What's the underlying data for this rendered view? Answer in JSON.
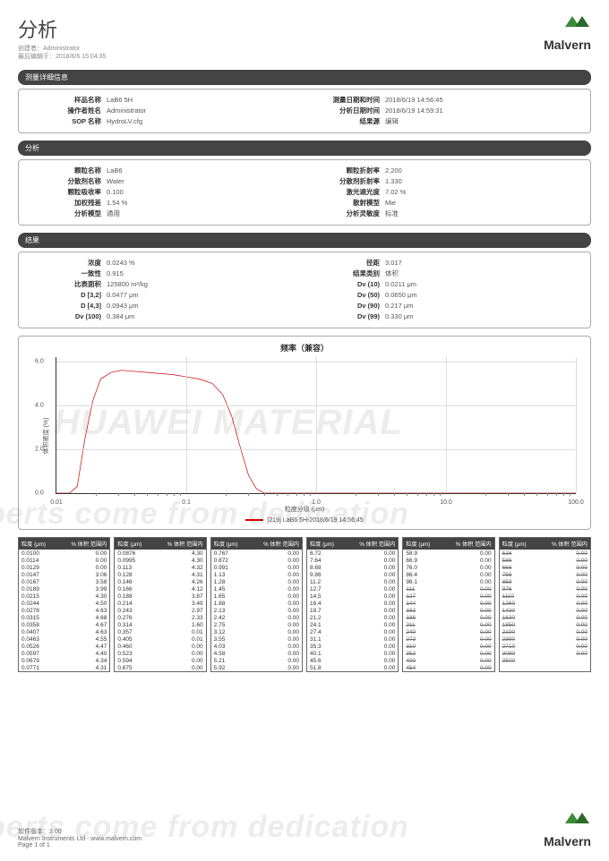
{
  "header": {
    "title": "分析",
    "creator_label": "创建者：",
    "creator": "Administrator",
    "edited_label": "最后编辑于：",
    "edited": "2018/6/6 15:04:35",
    "logo_text": "Malvern",
    "logo_color": "#3a8a3a"
  },
  "sections": {
    "measurement": {
      "title": "测量详细信息",
      "left": [
        {
          "label": "样品名称",
          "value": "LaB6   5H"
        },
        {
          "label": "操作者姓名",
          "value": "Administrator"
        },
        {
          "label": "SOP 名称",
          "value": "HydroLV.cfg"
        }
      ],
      "right": [
        {
          "label": "测量日期和时间",
          "value": "2018/6/19 14:56:45"
        },
        {
          "label": "分析日期时间",
          "value": "2018/6/19 14:59:31"
        },
        {
          "label": "结果源",
          "value": "编辑"
        }
      ]
    },
    "analysis": {
      "title": "分析",
      "left": [
        {
          "label": "颗粒名称",
          "value": "LaB6"
        },
        {
          "label": "分散剂名称",
          "value": "Water"
        },
        {
          "label": "颗粒吸收率",
          "value": "0.100"
        },
        {
          "label": "加权残差",
          "value": "1.54 %"
        },
        {
          "label": "分析模型",
          "value": "通用"
        }
      ],
      "right": [
        {
          "label": "颗粒折射率",
          "value": "2.200"
        },
        {
          "label": "分散剂折射率",
          "value": "1.330"
        },
        {
          "label": "激光遮光度",
          "value": "7.02 %"
        },
        {
          "label": "散射模型",
          "value": "Mie"
        },
        {
          "label": "分析灵敏度",
          "value": "标准"
        }
      ]
    },
    "results": {
      "title": "结果",
      "left": [
        {
          "label": "浓度",
          "value": "0.0243 %"
        },
        {
          "label": "一致性",
          "value": "0.915"
        },
        {
          "label": "比表面积",
          "value": "125800 m²/kg"
        },
        {
          "label": "D [3,2]",
          "value": "0.0477 μm"
        },
        {
          "label": "D [4,3]",
          "value": "0.0943 μm"
        },
        {
          "label": "Dv (100)",
          "value": "0.384 μm"
        }
      ],
      "right": [
        {
          "label": "径距",
          "value": "3.017"
        },
        {
          "label": "结果类别",
          "value": "体积"
        },
        {
          "label": "Dv (10)",
          "value": "0.0211 μm"
        },
        {
          "label": "Dv (50)",
          "value": "0.0650 μm"
        },
        {
          "label": "Dv (90)",
          "value": "0.217 μm"
        },
        {
          "label": "Dv (99)",
          "value": "0.330 μm"
        }
      ]
    }
  },
  "chart": {
    "title": "频率（兼容）",
    "y_label": "体积密度 (%)",
    "x_label": "粒度分级 (μm)",
    "legend": "[219] LaB6   5H-2018/6/19 14:56:45",
    "line_color": "#cc0000",
    "y_ticks": [
      "0.0",
      "2.0",
      "4.0",
      "6.0"
    ],
    "ylim": [
      0,
      6.2
    ],
    "x_ticks": [
      "0.01",
      "0.1",
      "1.0",
      "10.0",
      "100.0"
    ],
    "xlim_log": [
      -2,
      2
    ],
    "grid_color": "#dddddd",
    "curve": [
      [
        -2.0,
        0.0
      ],
      [
        -1.9,
        0.0
      ],
      [
        -1.84,
        0.3
      ],
      [
        -1.78,
        2.5
      ],
      [
        -1.72,
        4.2
      ],
      [
        -1.66,
        5.2
      ],
      [
        -1.58,
        5.5
      ],
      [
        -1.5,
        5.6
      ],
      [
        -1.4,
        5.55
      ],
      [
        -1.3,
        5.5
      ],
      [
        -1.2,
        5.45
      ],
      [
        -1.1,
        5.4
      ],
      [
        -1.0,
        5.3
      ],
      [
        -0.9,
        5.2
      ],
      [
        -0.8,
        5.0
      ],
      [
        -0.72,
        4.5
      ],
      [
        -0.65,
        3.5
      ],
      [
        -0.58,
        2.0
      ],
      [
        -0.52,
        0.8
      ],
      [
        -0.46,
        0.2
      ],
      [
        -0.4,
        0.0
      ],
      [
        0.0,
        0.0
      ],
      [
        1.0,
        0.0
      ],
      [
        2.0,
        0.0
      ]
    ]
  },
  "tables": {
    "header": [
      "粒度 (μm)",
      "% 体积 范围内"
    ],
    "columns": [
      [
        [
          "0.0100",
          "0.00"
        ],
        [
          "0.0114",
          "0.00"
        ],
        [
          "0.0129",
          "0.00"
        ],
        [
          "0.0147",
          "3.06"
        ],
        [
          "0.0167",
          "3.58"
        ],
        [
          "0.0189",
          "3.99"
        ],
        [
          "0.0215",
          "4.30"
        ],
        [
          "0.0244",
          "4.50"
        ],
        [
          "0.0278",
          "4.63"
        ],
        [
          "0.0315",
          "4.68"
        ],
        [
          "0.0358",
          "4.67"
        ],
        [
          "0.0407",
          "4.63"
        ],
        [
          "0.0463",
          "4.55"
        ],
        [
          "0.0526",
          "4.47"
        ],
        [
          "0.0597",
          "4.40"
        ],
        [
          "0.0679",
          "4.34"
        ],
        [
          "0.0771",
          "4.31"
        ]
      ],
      [
        [
          "0.0876",
          "4.30"
        ],
        [
          "0.0995",
          "4.30"
        ],
        [
          "0.113",
          "4.32"
        ],
        [
          "0.128",
          "4.31"
        ],
        [
          "0.146",
          "4.26"
        ],
        [
          "0.166",
          "4.12"
        ],
        [
          "0.188",
          "3.87"
        ],
        [
          "0.214",
          "3.49"
        ],
        [
          "0.243",
          "2.97"
        ],
        [
          "0.276",
          "2.33"
        ],
        [
          "0.314",
          "1.60"
        ],
        [
          "0.357",
          "0.01"
        ],
        [
          "0.405",
          "0.01"
        ],
        [
          "0.460",
          "0.00"
        ],
        [
          "0.523",
          "0.00"
        ],
        [
          "0.594",
          "0.00"
        ],
        [
          "0.675",
          "0.00"
        ]
      ],
      [
        [
          "0.767",
          "0.00"
        ],
        [
          "0.872",
          "0.00"
        ],
        [
          "0.991",
          "0.00"
        ],
        [
          "1.13",
          "0.00"
        ],
        [
          "1.28",
          "0.00"
        ],
        [
          "1.45",
          "0.00"
        ],
        [
          "1.65",
          "0.00"
        ],
        [
          "1.88",
          "0.00"
        ],
        [
          "2.13",
          "0.00"
        ],
        [
          "2.42",
          "0.00"
        ],
        [
          "2.75",
          "0.00"
        ],
        [
          "3.12",
          "0.00"
        ],
        [
          "3.55",
          "0.00"
        ],
        [
          "4.03",
          "0.00"
        ],
        [
          "4.58",
          "0.00"
        ],
        [
          "5.21",
          "0.00"
        ],
        [
          "5.92",
          "0.00"
        ]
      ],
      [
        [
          "6.72",
          "0.00"
        ],
        [
          "7.64",
          "0.00"
        ],
        [
          "8.68",
          "0.00"
        ],
        [
          "9.86",
          "0.00"
        ],
        [
          "11.2",
          "0.00"
        ],
        [
          "12.7",
          "0.00"
        ],
        [
          "14.5",
          "0.00"
        ],
        [
          "16.4",
          "0.00"
        ],
        [
          "18.7",
          "0.00"
        ],
        [
          "21.2",
          "0.00"
        ],
        [
          "24.1",
          "0.00"
        ],
        [
          "27.4",
          "0.00"
        ],
        [
          "31.1",
          "0.00"
        ],
        [
          "35.3",
          "0.00"
        ],
        [
          "40.1",
          "0.00"
        ],
        [
          "45.6",
          "0.00"
        ],
        [
          "51.8",
          "0.00"
        ]
      ],
      [
        [
          "58.9",
          "0.00"
        ],
        [
          "66.9",
          "0.00"
        ],
        [
          "76.0",
          "0.00"
        ],
        [
          "86.4",
          "0.00"
        ],
        [
          "98.1",
          "0.00"
        ],
        [
          "111",
          "0.00",
          true
        ],
        [
          "127",
          "0.00",
          true
        ],
        [
          "144",
          "0.00",
          true
        ],
        [
          "163",
          "0.00",
          true
        ],
        [
          "186",
          "0.00",
          true
        ],
        [
          "211",
          "0.00",
          true
        ],
        [
          "240",
          "0.00",
          true
        ],
        [
          "272",
          "0.00",
          true
        ],
        [
          "310",
          "0.00",
          true
        ],
        [
          "352",
          "0.00",
          true
        ],
        [
          "400",
          "0.00",
          true
        ],
        [
          "454",
          "0.00",
          true
        ]
      ],
      [
        [
          "516",
          "0.00",
          true
        ],
        [
          "586",
          "0.00",
          true
        ],
        [
          "666",
          "0.00",
          true
        ],
        [
          "756",
          "0.00",
          true
        ],
        [
          "859",
          "0.00",
          true
        ],
        [
          "976",
          "0.00",
          true
        ],
        [
          "1110",
          "0.00",
          true
        ],
        [
          "1260",
          "0.00",
          true
        ],
        [
          "1430",
          "0.00",
          true
        ],
        [
          "1630",
          "0.00",
          true
        ],
        [
          "1850",
          "0.00",
          true
        ],
        [
          "2100",
          "0.00",
          true
        ],
        [
          "2390",
          "0.00",
          true
        ],
        [
          "2710",
          "0.00",
          true
        ],
        [
          "3080",
          "0.00",
          true
        ],
        [
          "3500",
          "",
          true
        ]
      ]
    ]
  },
  "footer": {
    "version_label": "软件版本：",
    "version": "3.00",
    "company": "Malvern Instruments Ltd - www.malvern.com",
    "page": "Page 1 of 1"
  },
  "watermarks": {
    "top": "HUAWEI MATERIAL",
    "mid": "perts come from dedication",
    "bot": "perts come from dedication"
  }
}
